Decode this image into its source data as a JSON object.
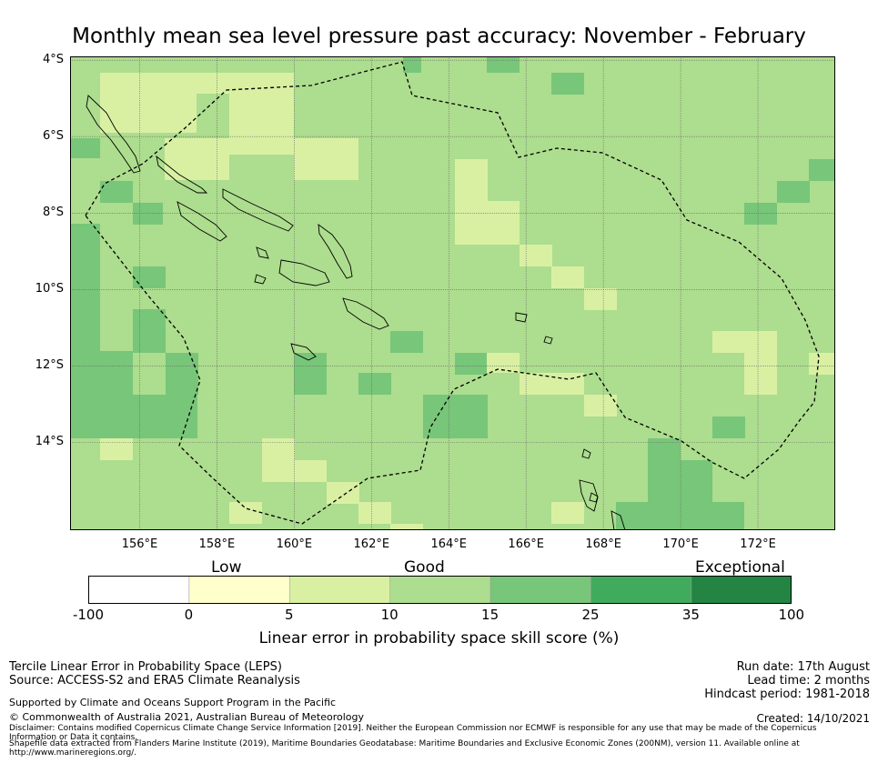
{
  "title": "Monthly mean sea level pressure past accuracy: November - February",
  "map": {
    "lat_labels": [
      "4°S",
      "6°S",
      "8°S",
      "10°S",
      "12°S",
      "14°S"
    ],
    "lon_labels": [
      "156°E",
      "158°E",
      "160°E",
      "162°E",
      "164°E",
      "166°E",
      "168°E",
      "170°E",
      "172°E"
    ],
    "lon_range": [
      154.2,
      174.0
    ],
    "lat_range": [
      -16.3,
      -3.9
    ],
    "colors": {
      "c0": "#ffffcc",
      "c5": "#d9f0a3",
      "c10": "#addd8e",
      "c15": "#78c679",
      "c25": "#41ab5d",
      "c35": "#238443",
      "eez": "#000000",
      "coast": "#000000",
      "grid": "#666666"
    }
  },
  "colorbar": {
    "categories": [
      "Low",
      "Good",
      "Exceptional"
    ],
    "ticks": [
      "-100",
      "0",
      "5",
      "10",
      "15",
      "25",
      "35",
      "100"
    ],
    "colors": [
      "#ffffff",
      "#ffffcc",
      "#d9f0a3",
      "#addd8e",
      "#78c679",
      "#41ab5d",
      "#238443"
    ],
    "label": "Linear error in probability space skill score (%)"
  },
  "footer": {
    "left_line1": "Tercile Linear Error in Probability Space (LEPS)",
    "left_line2": "Source: ACCESS-S2 and ERA5 Climate Reanalysis",
    "support": "Supported by Climate and Oceans Support Program in the Pacific",
    "copyright": "© Commonwealth of Australia 2021, Australian Bureau of Meteorology",
    "disclaimer1": "Disclaimer: Contains modified Copernicus Climate Change Service Information [2019]. Neither the European Commission nor ECMWF is responsible for any use that may be made of the Copernicus",
    "disclaimer2": "Information or Data it contains.",
    "shapefile1": "Shapefile data extracted from Flanders Marine Institute (2019), Maritime Boundaries Geodatabase: Maritime Boundaries and Exclusive Economic Zones (200NM), version 11. Available online at",
    "shapefile2": "http://www.marineregions.org/.",
    "run_date": "Run date: 17th August",
    "lead_time": "Lead time: 2 months",
    "hindcast": "Hindcast period: 1981-2018",
    "created": "Created: 14/10/2021"
  }
}
